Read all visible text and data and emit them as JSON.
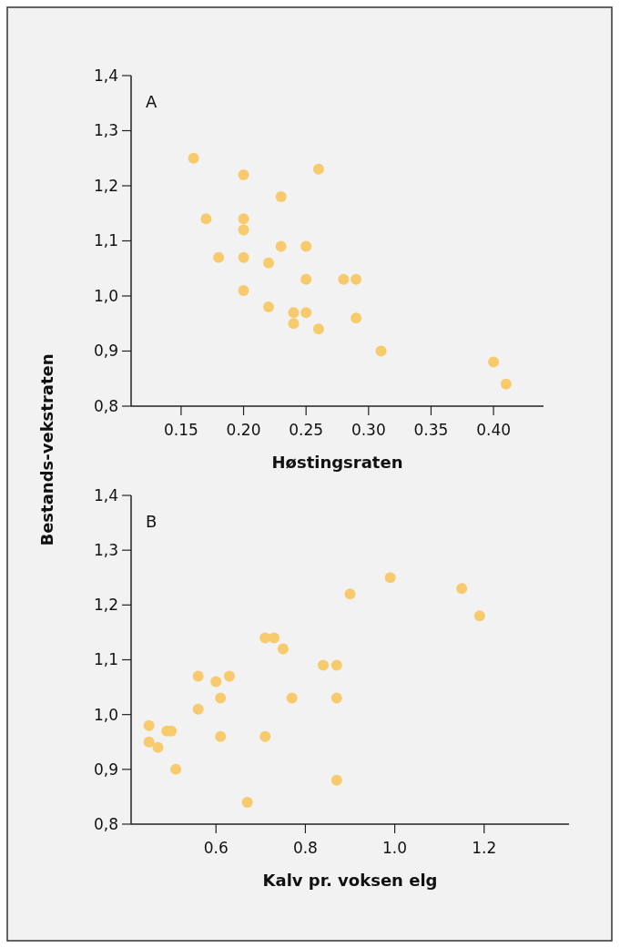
{
  "chart_data": [
    {
      "type": "scatter",
      "xlabel": "Høstingsraten",
      "ylabel": "Bestands-vekstraten",
      "annotations": [
        "A"
      ],
      "marker": "circle",
      "grid": false,
      "xlim": [
        0.11,
        0.44
      ],
      "xticks": [
        {
          "value": 0.15,
          "label": "0.15"
        },
        {
          "value": 0.2,
          "label": "0.20"
        },
        {
          "value": 0.25,
          "label": "0.25"
        },
        {
          "value": 0.3,
          "label": "0.30"
        },
        {
          "value": 0.35,
          "label": "0.35"
        },
        {
          "value": 0.4,
          "label": "0.40"
        }
      ],
      "ylim": [
        0.8,
        1.4
      ],
      "yticks": [
        {
          "value": 0.8,
          "label": "0,8"
        },
        {
          "value": 0.9,
          "label": "0,9"
        },
        {
          "value": 1.0,
          "label": "1,0"
        },
        {
          "value": 1.1,
          "label": "1,1"
        },
        {
          "value": 1.2,
          "label": "1,2"
        },
        {
          "value": 1.3,
          "label": "1,3"
        },
        {
          "value": 1.4,
          "label": "1,4"
        }
      ],
      "series": [
        {
          "color": "#f7cb6d",
          "x": [
            0.16,
            0.2,
            0.26,
            0.23,
            0.17,
            0.2,
            0.2,
            0.23,
            0.25,
            0.18,
            0.2,
            0.22,
            0.25,
            0.28,
            0.29,
            0.2,
            0.22,
            0.24,
            0.25,
            0.24,
            0.29,
            0.26,
            0.31,
            0.4,
            0.41
          ],
          "values": [
            1.25,
            1.22,
            1.23,
            1.18,
            1.14,
            1.14,
            1.12,
            1.09,
            1.09,
            1.07,
            1.07,
            1.06,
            1.03,
            1.03,
            1.03,
            1.01,
            0.98,
            0.97,
            0.97,
            0.95,
            0.96,
            0.94,
            0.9,
            0.88,
            0.84
          ]
        }
      ]
    },
    {
      "type": "scatter",
      "xlabel": "Kalv pr. voksen elg",
      "annotations": [
        "B"
      ],
      "marker": "circle",
      "grid": false,
      "xlim": [
        0.41,
        1.39
      ],
      "xticks": [
        0.6,
        0.8,
        {
          "value": 1.0,
          "label": "1.0"
        },
        1.2
      ],
      "ylim": [
        0.8,
        1.4
      ],
      "yticks": [
        {
          "value": 0.8,
          "label": "0,8"
        },
        {
          "value": 0.9,
          "label": "0,9"
        },
        {
          "value": 1.0,
          "label": "1,0"
        },
        {
          "value": 1.1,
          "label": "1,1"
        },
        {
          "value": 1.2,
          "label": "1,2"
        },
        {
          "value": 1.3,
          "label": "1,3"
        },
        {
          "value": 1.4,
          "label": "1,4"
        }
      ],
      "series": [
        {
          "color": "#f7cb6d",
          "x": [
            0.45,
            0.45,
            0.47,
            0.49,
            0.5,
            0.51,
            0.56,
            0.56,
            0.6,
            0.61,
            0.61,
            0.63,
            0.67,
            0.71,
            0.71,
            0.73,
            0.75,
            0.77,
            0.84,
            0.87,
            0.87,
            0.87,
            0.9,
            0.99,
            1.15,
            1.19
          ],
          "values": [
            0.98,
            0.95,
            0.94,
            0.97,
            0.97,
            0.9,
            1.07,
            1.01,
            1.06,
            1.03,
            0.96,
            1.07,
            0.84,
            1.14,
            0.96,
            1.14,
            1.12,
            1.03,
            1.09,
            1.09,
            1.03,
            0.88,
            1.22,
            1.25,
            1.23,
            1.18
          ]
        }
      ]
    }
  ]
}
